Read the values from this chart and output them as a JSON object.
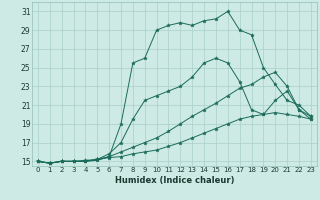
{
  "xlabel": "Humidex (Indice chaleur)",
  "xlim": [
    -0.5,
    23.5
  ],
  "ylim": [
    14.5,
    32
  ],
  "xticks": [
    0,
    1,
    2,
    3,
    4,
    5,
    6,
    7,
    8,
    9,
    10,
    11,
    12,
    13,
    14,
    15,
    16,
    17,
    18,
    19,
    20,
    21,
    22,
    23
  ],
  "yticks": [
    15,
    17,
    19,
    21,
    23,
    25,
    27,
    29,
    31
  ],
  "bg_color": "#ceeae4",
  "grid_color": "#aacfc8",
  "line_color": "#1a6b5a",
  "series": [
    [
      15.0,
      14.8,
      15.0,
      15.0,
      15.0,
      15.1,
      15.5,
      19.0,
      25.5,
      26.0,
      29.0,
      29.5,
      29.8,
      29.5,
      30.0,
      30.2,
      31.0,
      29.0,
      28.5,
      25.0,
      23.2,
      21.5,
      21.0,
      19.8
    ],
    [
      15.0,
      14.8,
      15.0,
      15.0,
      15.0,
      15.2,
      15.8,
      17.0,
      19.5,
      21.5,
      22.0,
      22.5,
      23.0,
      24.0,
      25.5,
      26.0,
      25.5,
      23.5,
      20.5,
      20.0,
      21.5,
      22.5,
      20.5,
      19.5
    ],
    [
      15.0,
      14.8,
      15.0,
      15.0,
      15.0,
      15.2,
      15.5,
      16.0,
      16.5,
      17.0,
      17.5,
      18.2,
      19.0,
      19.8,
      20.5,
      21.2,
      22.0,
      22.8,
      23.2,
      24.0,
      24.5,
      23.0,
      20.5,
      19.8
    ],
    [
      15.0,
      14.8,
      15.0,
      15.0,
      15.1,
      15.2,
      15.4,
      15.5,
      15.8,
      16.0,
      16.2,
      16.6,
      17.0,
      17.5,
      18.0,
      18.5,
      19.0,
      19.5,
      19.8,
      20.0,
      20.2,
      20.0,
      19.8,
      19.5
    ]
  ]
}
